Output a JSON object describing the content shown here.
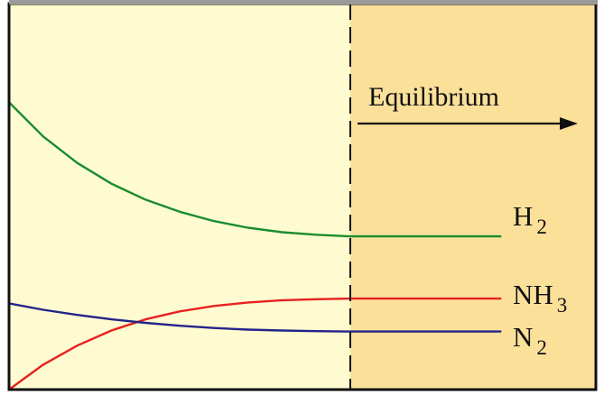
{
  "chart_data": {
    "type": "line",
    "xlabel": "",
    "ylabel": "",
    "xlim": [
      0,
      10
    ],
    "ylim": [
      0,
      10
    ],
    "grid": false,
    "legend": "none",
    "region": {
      "equilibrium_start_x": 5,
      "label": "Equilibrium",
      "colors": {
        "pre": "#fefbd0",
        "post": "#fbe09a"
      }
    },
    "series": [
      {
        "name": "H",
        "subscript": "2",
        "color": "#1a8c2e",
        "x": [
          0,
          0.5,
          1,
          1.5,
          2,
          2.5,
          3,
          3.5,
          4,
          4.5,
          5,
          7.2
        ],
        "y": [
          9.0,
          7.93,
          7.1,
          6.45,
          5.95,
          5.57,
          5.28,
          5.07,
          4.93,
          4.85,
          4.8,
          4.8
        ]
      },
      {
        "name": "NH",
        "subscript": "3",
        "color": "#e8201f",
        "x": [
          0,
          0.5,
          1,
          1.5,
          2,
          2.5,
          3,
          3.5,
          4,
          4.5,
          5,
          7.2
        ],
        "y": [
          0.0,
          0.78,
          1.38,
          1.85,
          2.2,
          2.45,
          2.62,
          2.73,
          2.8,
          2.83,
          2.85,
          2.85
        ]
      },
      {
        "name": "N",
        "subscript": "2",
        "color": "#23238a",
        "x": [
          0,
          0.5,
          1,
          1.5,
          2,
          2.5,
          3,
          3.5,
          4,
          4.5,
          5,
          7.2
        ],
        "y": [
          2.7,
          2.5,
          2.34,
          2.2,
          2.09,
          2.0,
          1.93,
          1.88,
          1.85,
          1.83,
          1.82,
          1.82
        ]
      }
    ]
  }
}
